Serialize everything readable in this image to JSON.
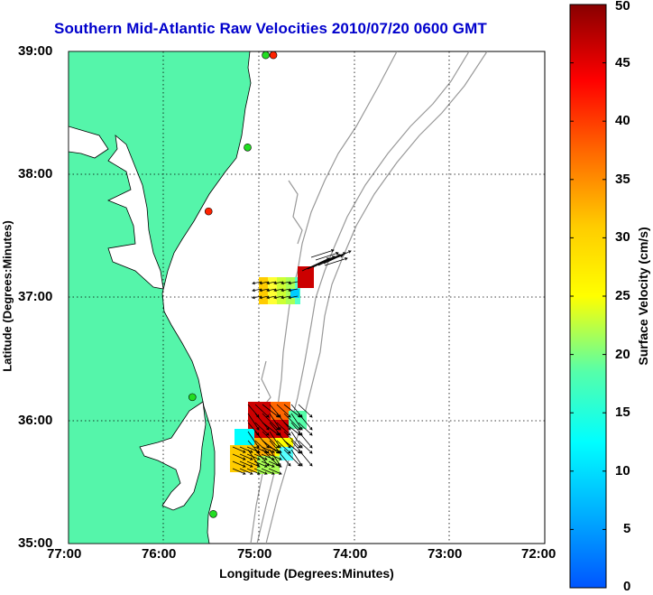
{
  "title": "Southern Mid-Atlantic Raw Velocities 2010/07/20 0600 GMT",
  "xlabel": "Longitude (Degrees:Minutes)",
  "ylabel": "Latitude (Degrees:Minutes)",
  "colorbar_label": "Surface Velocity (cm/s)",
  "x_ticks": [
    "77:00",
    "76:00",
    "75:00",
    "74:00",
    "73:00",
    "72:00"
  ],
  "y_ticks": [
    "39:00",
    "38:00",
    "37:00",
    "36:00",
    "35:00"
  ],
  "colorbar_ticks": [
    "50",
    "45",
    "40",
    "35",
    "30",
    "25",
    "20",
    "15",
    "10",
    "5",
    "0"
  ],
  "colors": {
    "land": "#55f5aa",
    "title": "#0000cc",
    "contour": "#999999"
  },
  "chart_data": {
    "type": "map",
    "xlim": [
      -77,
      -72
    ],
    "ylim": [
      35,
      39
    ],
    "color_range_cm_s": [
      0,
      50
    ],
    "grid": true,
    "stations": [
      {
        "lon": -74.85,
        "lat": 38.97,
        "color": "red"
      },
      {
        "lon": -74.93,
        "lat": 38.97,
        "color": "green"
      },
      {
        "lon": -75.12,
        "lat": 38.22,
        "color": "green"
      },
      {
        "lon": -75.53,
        "lat": 37.7,
        "color": "red"
      },
      {
        "lon": -75.7,
        "lat": 36.19,
        "color": "green"
      },
      {
        "lon": -75.48,
        "lat": 35.24,
        "color": "green"
      }
    ],
    "velocity_regions": [
      {
        "name": "north",
        "lon": [
          -75.0,
          -74.4
        ],
        "lat": [
          36.93,
          37.24
        ],
        "speed_range": [
          10,
          50
        ]
      },
      {
        "name": "south",
        "lon": [
          -75.3,
          -74.6
        ],
        "lat": [
          35.55,
          36.35
        ],
        "speed_range": [
          10,
          50
        ]
      }
    ]
  }
}
